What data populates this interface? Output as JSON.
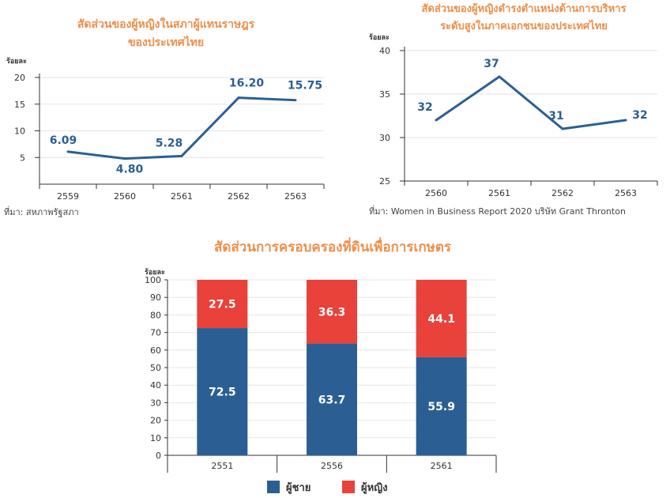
{
  "chart_data": [
    {
      "type": "line",
      "title_lines": [
        "สัดส่วนของผู้หญิงในสภาผู้แทนราษฎร",
        "ของประเทศไทย"
      ],
      "ylabel": "ร้อยละ",
      "source": "ที่มา: สหภาพรัฐสภา",
      "categories": [
        "2559",
        "2560",
        "2561",
        "2562",
        "2563"
      ],
      "values": [
        6.09,
        4.8,
        5.28,
        16.2,
        15.75
      ],
      "value_labels": [
        "6.09",
        "4.80",
        "5.28",
        "16.20",
        "15.75"
      ],
      "yticks": [
        "5",
        "10",
        "15",
        "20"
      ],
      "ylim": [
        0,
        20
      ],
      "grid": true,
      "color": "#2b5f94"
    },
    {
      "type": "line",
      "title_lines": [
        "สัดส่วนของผู้หญิงดำรงตำแหน่งด้านการบริหาร",
        "ระดับสูงในภาคเอกชนของประเทศไทย"
      ],
      "ylabel": "ร้อยละ",
      "source": "ที่มา: Women in Business Report 2020 บริษัท Grant Thronton",
      "categories": [
        "2560",
        "2561",
        "2562",
        "2563"
      ],
      "values": [
        32,
        37,
        31,
        32
      ],
      "value_labels": [
        "32",
        "37",
        "31",
        "32"
      ],
      "yticks": [
        "25",
        "30",
        "35",
        "40"
      ],
      "ylim": [
        25,
        40
      ],
      "grid": true,
      "color": "#2b5f94"
    },
    {
      "type": "bar",
      "stacked": true,
      "title": "สัดส่วนการครอบครองที่ดินเพื่อการเกษตร",
      "ylabel": "ร้อยละ",
      "categories": [
        "2551",
        "2556",
        "2561"
      ],
      "yticks": [
        "10",
        "20",
        "30",
        "40",
        "50",
        "60",
        "70",
        "80",
        "90",
        "100"
      ],
      "ylim": [
        0,
        100
      ],
      "grid": true,
      "legend_position": "bottom",
      "series": [
        {
          "name": "ผู้ชาย",
          "values": [
            72.5,
            63.7,
            55.9
          ],
          "labels": [
            "72.5",
            "63.7",
            "55.9"
          ],
          "color": "#2b5f94"
        },
        {
          "name": "ผู้หญิง",
          "values": [
            27.5,
            36.3,
            44.1
          ],
          "labels": [
            "27.5",
            "36.3",
            "44.1"
          ],
          "color": "#e8423a"
        }
      ]
    }
  ]
}
